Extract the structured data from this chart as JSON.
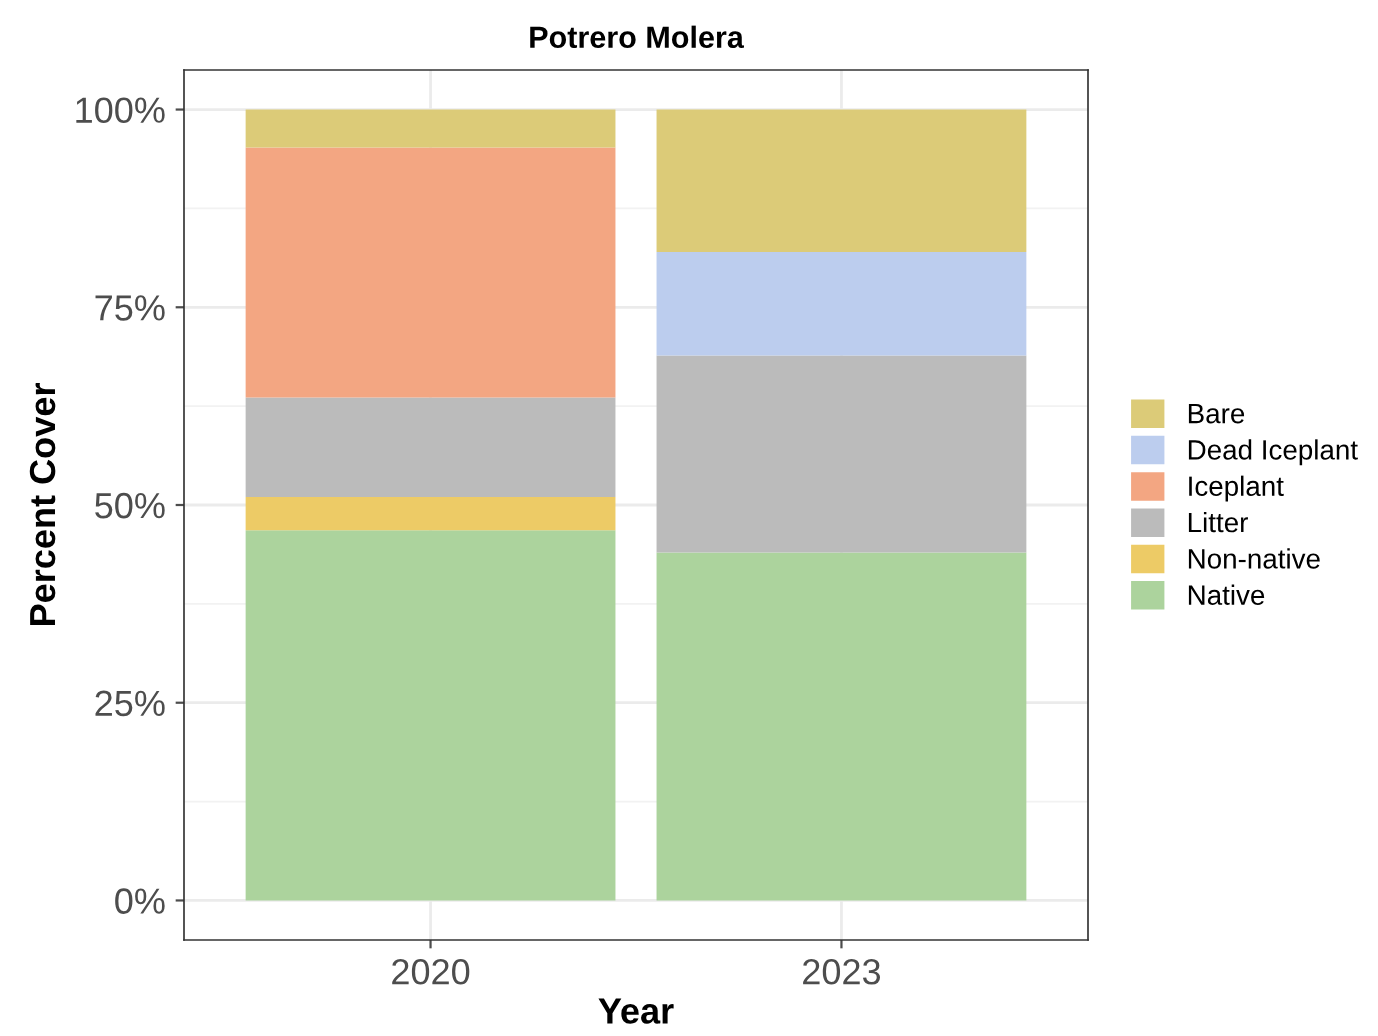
{
  "chart_data": {
    "type": "bar",
    "title": "Potrero Molera",
    "xlabel": "Year",
    "ylabel": "Percent Cover",
    "categories": [
      "2020",
      "2023"
    ],
    "stacked": true,
    "series": [
      {
        "name": "Native",
        "color": "#acd39d",
        "values": [
          46.8,
          44
        ]
      },
      {
        "name": "Non-native",
        "color": "#edcb66",
        "values": [
          4.2,
          0
        ]
      },
      {
        "name": "Litter",
        "color": "#bbbbbb",
        "values": [
          12.6,
          24.9
        ]
      },
      {
        "name": "Iceplant",
        "color": "#f3a682",
        "values": [
          31.6,
          0
        ]
      },
      {
        "name": "Dead Iceplant",
        "color": "#bccdee",
        "values": [
          0,
          13.1
        ]
      },
      {
        "name": "Bare",
        "color": "#dccb78",
        "values": [
          4.8,
          18
        ]
      }
    ],
    "ylim": [
      -5,
      105
    ],
    "yticks": [
      {
        "value": 0,
        "label": "0%"
      },
      {
        "value": 25,
        "label": "25%"
      },
      {
        "value": 50,
        "label": "50%"
      },
      {
        "value": 75,
        "label": "75%"
      },
      {
        "value": 100,
        "label": "100%"
      }
    ],
    "grid": true,
    "legend": "right"
  }
}
